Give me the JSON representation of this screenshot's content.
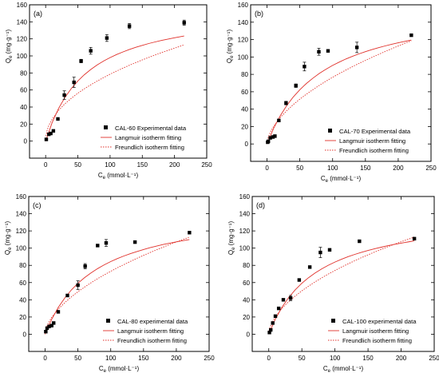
{
  "chart_data": [
    {
      "type": "scatter",
      "panel_label": "(a)",
      "xlabel": "C_e (mmol·L⁻¹)",
      "ylabel": "Q_e (mg·g⁻¹)",
      "xlim": [
        -25,
        250
      ],
      "ylim": [
        -20,
        160
      ],
      "xticks": [
        0,
        50,
        100,
        150,
        200,
        250
      ],
      "yticks": [
        0,
        20,
        40,
        60,
        80,
        100,
        120,
        140,
        160
      ],
      "grid": false,
      "legend_position": "bottom-right",
      "series": [
        {
          "name": "CAL-60 Experimental data",
          "kind": "points",
          "color": "#000000",
          "x": [
            1,
            5,
            8,
            12,
            19,
            29,
            44,
            55,
            70,
            95,
            130,
            215
          ],
          "y": [
            2,
            8,
            9,
            12,
            26,
            54,
            69,
            94,
            106,
            121,
            135,
            139
          ],
          "err": [
            0,
            0,
            0,
            0,
            0,
            5,
            6,
            2,
            4,
            4,
            3,
            3
          ]
        },
        {
          "name": "Langmuir isotherm fitting",
          "kind": "line",
          "dash": "solid",
          "color": "#e0302a",
          "x": [
            0,
            10,
            20,
            30,
            40,
            50,
            60,
            70,
            80,
            90,
            100,
            110,
            120,
            130,
            140,
            150,
            160,
            170,
            180,
            190,
            200,
            210,
            215
          ],
          "y": [
            0,
            21.6,
            38.2,
            51.3,
            61.9,
            70.6,
            77.9,
            84.1,
            89.4,
            94.0,
            98.0,
            101.6,
            104.7,
            107.6,
            110.1,
            112.4,
            114.5,
            116.4,
            118.2,
            119.8,
            121.3,
            122.7,
            123.3
          ]
        },
        {
          "name": "Freundlich isotherm fitting",
          "kind": "line",
          "dash": "dotted",
          "color": "#e0302a",
          "x": [
            0.5,
            2,
            5,
            10,
            20,
            30,
            40,
            50,
            60,
            70,
            80,
            90,
            100,
            110,
            120,
            130,
            140,
            150,
            160,
            170,
            180,
            190,
            200,
            215
          ],
          "y": [
            6.0,
            11.8,
            18.4,
            25.7,
            36.0,
            43.8,
            50.4,
            56.2,
            61.4,
            66.1,
            70.5,
            74.6,
            78.5,
            82.2,
            85.7,
            89.0,
            92.2,
            95.3,
            98.2,
            101.1,
            103.9,
            106.5,
            109.1,
            112.9
          ]
        }
      ]
    },
    {
      "type": "scatter",
      "panel_label": "(b)",
      "xlabel": "C_e (mmol·L⁻¹)",
      "ylabel": "Q_e (mg·g⁻¹)",
      "xlim": [
        -25,
        250
      ],
      "ylim": [
        -20,
        160
      ],
      "xticks": [
        0,
        50,
        100,
        150,
        200,
        250
      ],
      "yticks": [
        0,
        20,
        40,
        60,
        80,
        100,
        120,
        140,
        160
      ],
      "grid": false,
      "legend_position": "bottom-right",
      "series": [
        {
          "name": "CAL-70 Experimental data",
          "kind": "points",
          "color": "#000000",
          "x": [
            1,
            2,
            5,
            9,
            12,
            18,
            29,
            44,
            57,
            79,
            93,
            137,
            220
          ],
          "y": [
            2,
            3,
            7,
            8,
            9,
            27,
            47,
            67,
            89,
            106,
            107,
            111,
            125
          ],
          "err": [
            0,
            0,
            0,
            0,
            0,
            0,
            2,
            2,
            5,
            4,
            0,
            6,
            0
          ]
        },
        {
          "name": "Langmuir isotherm fitting",
          "kind": "line",
          "dash": "solid",
          "color": "#e0302a",
          "x": [
            0,
            10,
            20,
            30,
            40,
            50,
            60,
            70,
            80,
            90,
            100,
            110,
            120,
            130,
            140,
            150,
            160,
            170,
            180,
            190,
            200,
            210,
            220
          ],
          "y": [
            0,
            17.9,
            32.3,
            44.1,
            54.0,
            62.3,
            69.5,
            75.7,
            81.2,
            86.0,
            90.3,
            94.1,
            97.6,
            100.7,
            103.5,
            106.1,
            108.5,
            110.7,
            112.7,
            114.6,
            116.3,
            117.9,
            119.4
          ]
        },
        {
          "name": "Freundlich isotherm fitting",
          "kind": "line",
          "dash": "dotted",
          "color": "#e0302a",
          "x": [
            0.5,
            2,
            5,
            10,
            20,
            30,
            40,
            50,
            60,
            70,
            80,
            90,
            100,
            110,
            120,
            130,
            140,
            150,
            160,
            170,
            180,
            190,
            200,
            210,
            220
          ],
          "y": [
            3.6,
            8.0,
            13.6,
            20.2,
            30.2,
            38.2,
            45.2,
            51.5,
            57.2,
            62.5,
            67.5,
            72.2,
            76.6,
            80.8,
            84.9,
            88.8,
            92.5,
            96.1,
            99.6,
            103.0,
            106.3,
            109.5,
            112.6,
            115.7,
            118.7
          ]
        }
      ]
    },
    {
      "type": "scatter",
      "panel_label": "(c)",
      "xlabel": "C_e (mmol·L⁻¹)",
      "ylabel": "Q_e (mg·g⁻¹)",
      "xlim": [
        -25,
        250
      ],
      "ylim": [
        -20,
        160
      ],
      "xticks": [
        0,
        50,
        100,
        150,
        200,
        250
      ],
      "yticks": [
        0,
        20,
        40,
        60,
        80,
        100,
        120,
        140,
        160
      ],
      "grid": false,
      "legend_position": "bottom-right",
      "series": [
        {
          "name": "CAL-80 experimental data",
          "kind": "points",
          "color": "#000000",
          "x": [
            1,
            3,
            6,
            10,
            13,
            20,
            34,
            50,
            61,
            80,
            93,
            137,
            220
          ],
          "y": [
            3,
            7,
            9,
            10,
            13,
            26,
            45,
            57,
            79,
            103,
            106,
            107,
            118
          ],
          "err": [
            0,
            0,
            0,
            0,
            0,
            0,
            0,
            5,
            3,
            0,
            4,
            0,
            0
          ]
        },
        {
          "name": "Langmuir isotherm fitting",
          "kind": "line",
          "dash": "solid",
          "color": "#e0302a",
          "x": [
            0,
            10,
            20,
            30,
            40,
            50,
            60,
            70,
            80,
            90,
            100,
            110,
            120,
            130,
            140,
            150,
            160,
            170,
            180,
            190,
            200,
            210,
            220
          ],
          "y": [
            0,
            17.4,
            31.1,
            42.2,
            51.4,
            59.1,
            65.7,
            71.3,
            76.2,
            80.6,
            84.4,
            87.8,
            90.9,
            93.6,
            96.1,
            98.4,
            100.5,
            102.4,
            104.2,
            105.8,
            107.3,
            108.7,
            110.0
          ]
        },
        {
          "name": "Freundlich isotherm fitting",
          "kind": "line",
          "dash": "dotted",
          "color": "#e0302a",
          "x": [
            0.5,
            2,
            5,
            10,
            20,
            30,
            40,
            50,
            60,
            70,
            80,
            90,
            100,
            110,
            120,
            130,
            140,
            150,
            160,
            170,
            180,
            190,
            200,
            210,
            220
          ],
          "y": [
            3.6,
            7.8,
            13.2,
            19.6,
            29.1,
            36.7,
            43.4,
            49.3,
            54.7,
            59.8,
            64.5,
            68.9,
            73.1,
            77.1,
            80.9,
            84.6,
            88.2,
            91.6,
            94.9,
            98.1,
            101.2,
            104.2,
            107.1,
            110.0,
            112.8
          ]
        }
      ]
    },
    {
      "type": "scatter",
      "panel_label": "(d)",
      "xlabel": "C_e (mmol·L⁻¹)",
      "ylabel": "Q_e (mg·g⁻¹)",
      "xlim": [
        -25,
        250
      ],
      "ylim": [
        -20,
        160
      ],
      "xticks": [
        0,
        50,
        100,
        150,
        200,
        250
      ],
      "yticks": [
        0,
        20,
        40,
        60,
        80,
        100,
        120,
        140,
        160
      ],
      "grid": false,
      "legend_position": "bottom-right",
      "series": [
        {
          "name": "CAL-100 experimental data",
          "kind": "points",
          "color": "#000000",
          "x": [
            1,
            3,
            6,
            10,
            15,
            22,
            33,
            46,
            62,
            78,
            92,
            137,
            220
          ],
          "y": [
            2,
            5,
            13,
            21,
            30,
            40,
            42,
            63,
            78,
            95,
            98,
            108,
            111
          ],
          "err": [
            0,
            0,
            0,
            0,
            0,
            0,
            3,
            0,
            0,
            6,
            0,
            0,
            0
          ]
        },
        {
          "name": "Langmuir isotherm fitting",
          "kind": "line",
          "dash": "solid",
          "color": "#e0302a",
          "x": [
            0,
            10,
            20,
            30,
            40,
            50,
            60,
            70,
            80,
            90,
            100,
            110,
            120,
            130,
            140,
            150,
            160,
            170,
            180,
            190,
            200,
            210,
            220
          ],
          "y": [
            0,
            17.6,
            31.4,
            42.5,
            51.6,
            59.2,
            65.6,
            71.1,
            75.9,
            80.1,
            83.8,
            87.1,
            90.1,
            92.7,
            95.1,
            97.3,
            99.3,
            101.1,
            102.8,
            104.4,
            105.8,
            107.1,
            108.4
          ]
        },
        {
          "name": "Freundlich isotherm fitting",
          "kind": "line",
          "dash": "dotted",
          "color": "#e0302a",
          "x": [
            0.5,
            2,
            5,
            10,
            20,
            30,
            40,
            50,
            60,
            70,
            80,
            90,
            100,
            110,
            120,
            130,
            140,
            150,
            160,
            170,
            180,
            190,
            200,
            210,
            220
          ],
          "y": [
            3.9,
            8.3,
            13.8,
            20.4,
            30.1,
            37.8,
            44.4,
            50.4,
            55.8,
            60.8,
            65.5,
            69.9,
            74.0,
            78.0,
            81.8,
            85.4,
            88.9,
            92.2,
            95.5,
            98.6,
            101.6,
            104.6,
            107.4,
            110.2,
            112.9
          ]
        }
      ]
    }
  ]
}
